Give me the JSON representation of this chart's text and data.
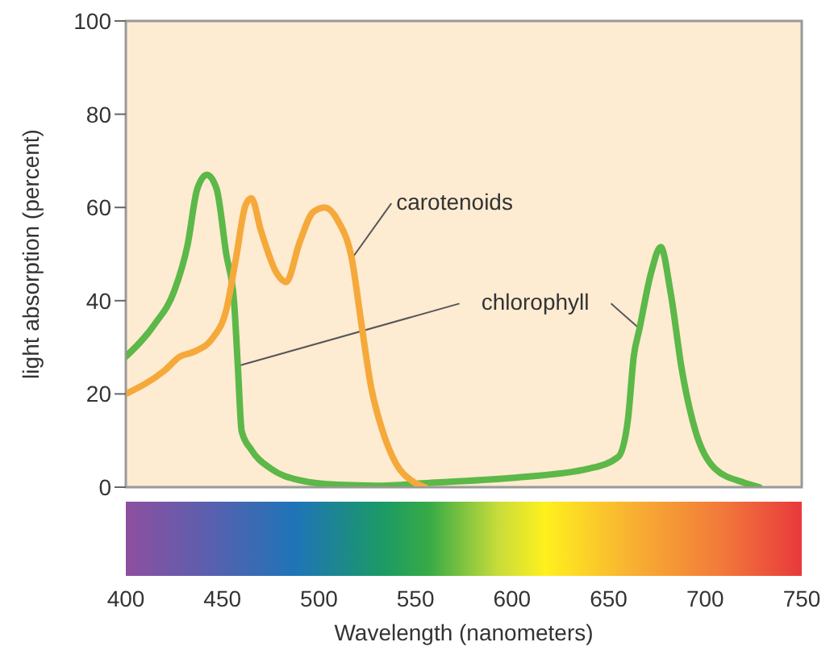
{
  "chart_data": {
    "type": "line",
    "xlabel": "Wavelength (nanometers)",
    "ylabel": "light absorption (percent)",
    "xlim": [
      400,
      750
    ],
    "xticks": [
      400,
      450,
      500,
      550,
      600,
      650,
      700,
      750
    ],
    "ylim": [
      0,
      100
    ],
    "yticks": [
      0,
      20,
      40,
      60,
      80,
      100
    ],
    "line_style": "solid",
    "marker": "none",
    "series": [
      {
        "name": "chlorophyll",
        "color": "#5cb848",
        "x": [
          400,
          415,
          425,
          432,
          437,
          442,
          447,
          452,
          456,
          458,
          460,
          465,
          475,
          490,
          510,
          530,
          560,
          600,
          640,
          655,
          660,
          663,
          666,
          672,
          677,
          682,
          688,
          695,
          705,
          720,
          728
        ],
        "values": [
          28,
          35,
          42,
          52,
          64,
          67,
          64,
          50,
          40,
          26,
          12,
          8,
          4,
          1.5,
          0.5,
          0.3,
          1,
          2,
          4,
          6.5,
          14.5,
          28,
          34,
          46,
          51.5,
          42,
          25,
          12,
          4,
          1,
          0
        ]
      },
      {
        "name": "carotenoids",
        "color": "#f5a93a",
        "x": [
          400,
          420,
          428,
          435,
          445,
          452,
          457,
          462,
          465,
          470,
          478,
          483,
          490,
          497,
          503,
          510,
          517,
          522,
          527,
          533,
          540,
          548,
          555
        ],
        "values": [
          20,
          25,
          28,
          29,
          32,
          38,
          49,
          60.5,
          62,
          55,
          46,
          44,
          52.5,
          59,
          60,
          57,
          49,
          35,
          21.5,
          12,
          5,
          1.4,
          0
        ]
      }
    ]
  }
}
